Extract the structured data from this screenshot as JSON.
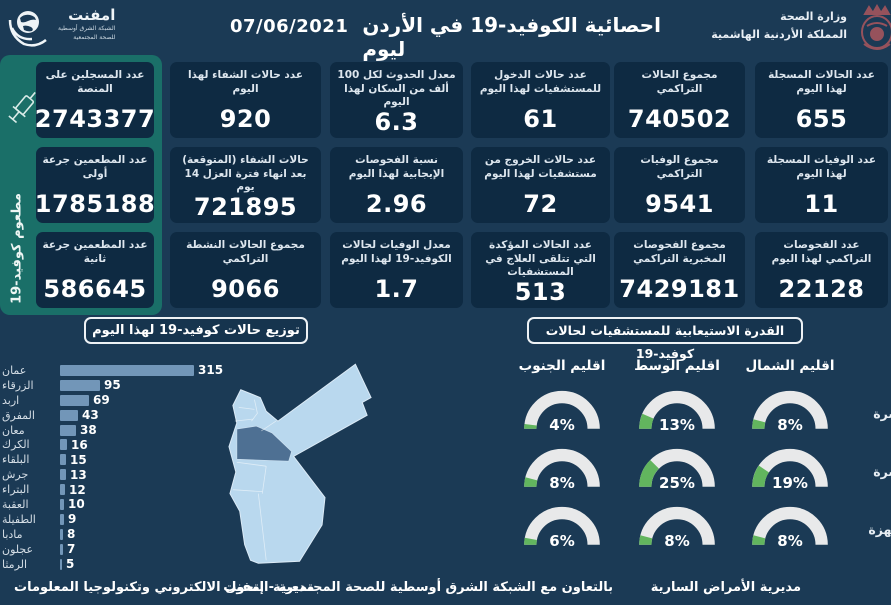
{
  "header": {
    "title": "احصائية الكوفيد-19 في الأردن ليوم",
    "date": "07/06/2021",
    "ministry": {
      "line1": "وزارة الصحة",
      "line2": "المملكة الأردنية الهاشمية"
    },
    "emphnet": {
      "name": "امفنت",
      "sub1": "الشبكة الشرق أوسطية",
      "sub2": "للصحة المجتمعية"
    }
  },
  "vaccine_panel": {
    "side_label": "مطعوم كوفيد-19",
    "cards": [
      {
        "label": "عدد المسجلين على المنصة",
        "value": "2743377"
      },
      {
        "label": "عدد المطعمين جرعة أولى",
        "value": "1785188"
      },
      {
        "label": "عدد المطعمين جرعة ثانية",
        "value": "586645"
      }
    ]
  },
  "stat_columns": [
    {
      "cards": [
        {
          "label": "عدد الحالات المسجلة لهذا اليوم",
          "value": "655"
        },
        {
          "label": "عدد الوفيات المسجلة لهذا اليوم",
          "value": "11"
        },
        {
          "label": "عدد الفحوصات التراكمي لهذا اليوم",
          "value": "22128"
        }
      ]
    },
    {
      "cards": [
        {
          "label": "مجموع الحالات التراكمي",
          "value": "740502"
        },
        {
          "label": "مجموع الوفيات التراكمي",
          "value": "9541"
        },
        {
          "label": "مجموع الفحوصات المخبرية التراكمي",
          "value": "7429181"
        }
      ]
    },
    {
      "cards": [
        {
          "label": "عدد حالات الدخول للمستشفيات لهذا اليوم",
          "value": "61"
        },
        {
          "label": "عدد حالات الخروج من مستشفيات لهذا اليوم",
          "value": "72"
        },
        {
          "label": "عدد الحالات المؤكدة التي تتلقى العلاج في المستشفيات",
          "value": "513"
        }
      ]
    },
    {
      "cards": [
        {
          "label": "معدل الحدوث لكل 100 ألف من السكان لهذا اليوم",
          "value": "6.3"
        },
        {
          "label": "نسبة الفحوصات الإيجابية لهذا اليوم",
          "value": "2.96"
        },
        {
          "label": "معدل الوفيات لحالات الكوفيد-19 لهذا اليوم",
          "value": "1.7"
        }
      ]
    },
    {
      "cards": [
        {
          "label": "عدد حالات الشفاء لهذا اليوم",
          "value": "920"
        },
        {
          "label": "حالات الشفاء (المتوقعة) بعد انهاء فترة العزل 14 يوم",
          "value": "721895"
        },
        {
          "label": "مجموع الحالات النشطة التراكمي",
          "value": "9066"
        }
      ]
    }
  ],
  "chart_data": [
    {
      "type": "bar",
      "orientation": "horizontal",
      "title": "توزيع حالات كوفيد-19 لهذا اليوم",
      "categories": [
        "عمان",
        "الزرقاء",
        "اربد",
        "المفرق",
        "معان",
        "الكرك",
        "البلقاء",
        "جرش",
        "البتراء",
        "العقبة",
        "الطفيلة",
        "مادبا",
        "عجلون",
        "الرمثا"
      ],
      "values": [
        315,
        95,
        69,
        43,
        38,
        16,
        15,
        13,
        12,
        10,
        9,
        8,
        7,
        5
      ],
      "xlim": [
        0,
        315
      ],
      "bar_color": "#7296b8"
    },
    {
      "type": "gauge-grid",
      "title": "القدرة الاستيعابية للمستشفيات لحالات كوفيد-19",
      "columns": [
        "اقليم الشمال",
        "اقليم الوسط",
        "اقليم الجنوب"
      ],
      "rows": [
        {
          "label": "نسبة اشغال اسرة العزل",
          "values": [
            8,
            13,
            4
          ]
        },
        {
          "label": "نسبة اشغال اسرة العناية الحثيثة",
          "values": [
            19,
            25,
            8
          ]
        },
        {
          "label": "نسبة اشغال اجهزة التنفس",
          "values": [
            8,
            8,
            6
          ]
        }
      ],
      "unit": "%",
      "range": [
        0,
        100
      ],
      "fill_color": "#62b55e",
      "track_color": "#e8e9ea"
    }
  ],
  "footer": {
    "right": "مديرية الأمراض السارية",
    "center": "بالتعاون مع الشبكة الشرق أوسطية للصحة المجتمعية - إمفنت",
    "left": "مديرية التحول الالكتروني وتكنولوجيا المعلومات"
  },
  "colors": {
    "background": "#1b3a55",
    "card": "#0e2a42",
    "teal_panel": "#1a6f68",
    "bar": "#7296b8",
    "gauge_fill": "#62b55e",
    "gauge_track": "#e8e9ea",
    "map_light": "#b9d8ee",
    "map_highlight": "#4e7093"
  }
}
